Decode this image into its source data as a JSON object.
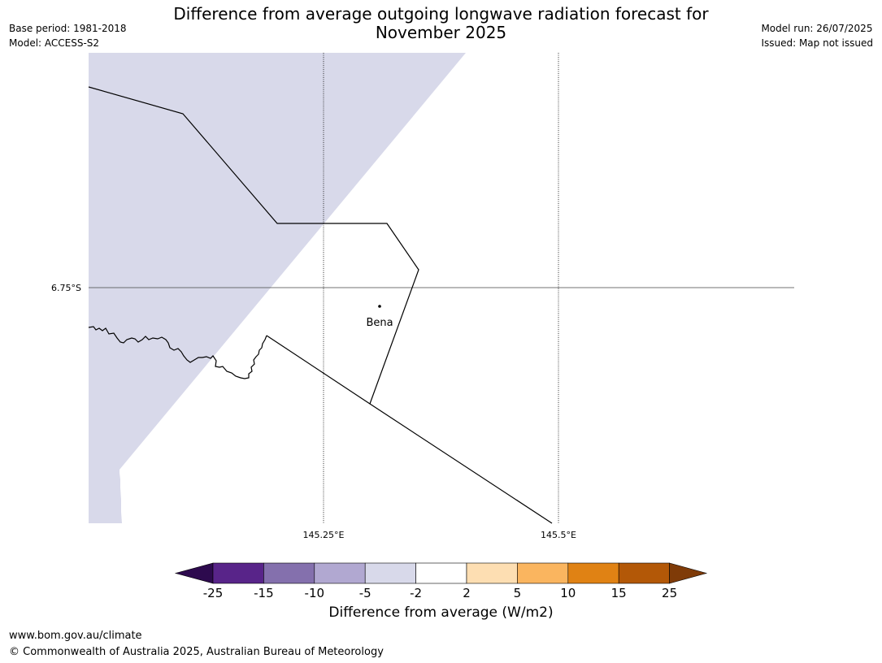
{
  "title_line1": "Difference from average outgoing longwave radiation forecast for",
  "title_line2": "November 2025",
  "base_period": "Base period: 1981-2018",
  "model": "Model: ACCESS-S2",
  "model_run": "Model run: 26/07/2025",
  "issued": "Issued: Map not issued",
  "map": {
    "lat_label": "6.75°S",
    "lon_labels": [
      "145.25°E",
      "145.5°E"
    ],
    "place": "Bena",
    "shaded_category": "-5 to -2",
    "colors": {
      "shaded": "#d8d9ea",
      "border": "#000000",
      "gridline": "#444444"
    }
  },
  "legend": {
    "title": "Difference from average (W/m2)",
    "ticks": [
      "-25",
      "-15",
      "-10",
      "-5",
      "-2",
      "2",
      "5",
      "10",
      "15",
      "25"
    ],
    "bins": [
      {
        "range": "< -25",
        "color": "#2d0a4e"
      },
      {
        "range": "-25 to -15",
        "color": "#582489"
      },
      {
        "range": "-15 to -10",
        "color": "#8470ad"
      },
      {
        "range": "-10 to -5",
        "color": "#b1a8d1"
      },
      {
        "range": "-5 to -2",
        "color": "#d8d9ea"
      },
      {
        "range": "-2 to 2",
        "color": "#ffffff"
      },
      {
        "range": "2 to 5",
        "color": "#fddeb2"
      },
      {
        "range": "5 to 10",
        "color": "#fab55f"
      },
      {
        "range": "10 to 15",
        "color": "#e08214"
      },
      {
        "range": "15 to 25",
        "color": "#b35807"
      },
      {
        "range": "> 25",
        "color": "#7f3b08"
      }
    ]
  },
  "footer": {
    "url": "www.bom.gov.au/climate",
    "copyright": "© Commonwealth of Australia 2025, Australian Bureau of Meteorology"
  }
}
